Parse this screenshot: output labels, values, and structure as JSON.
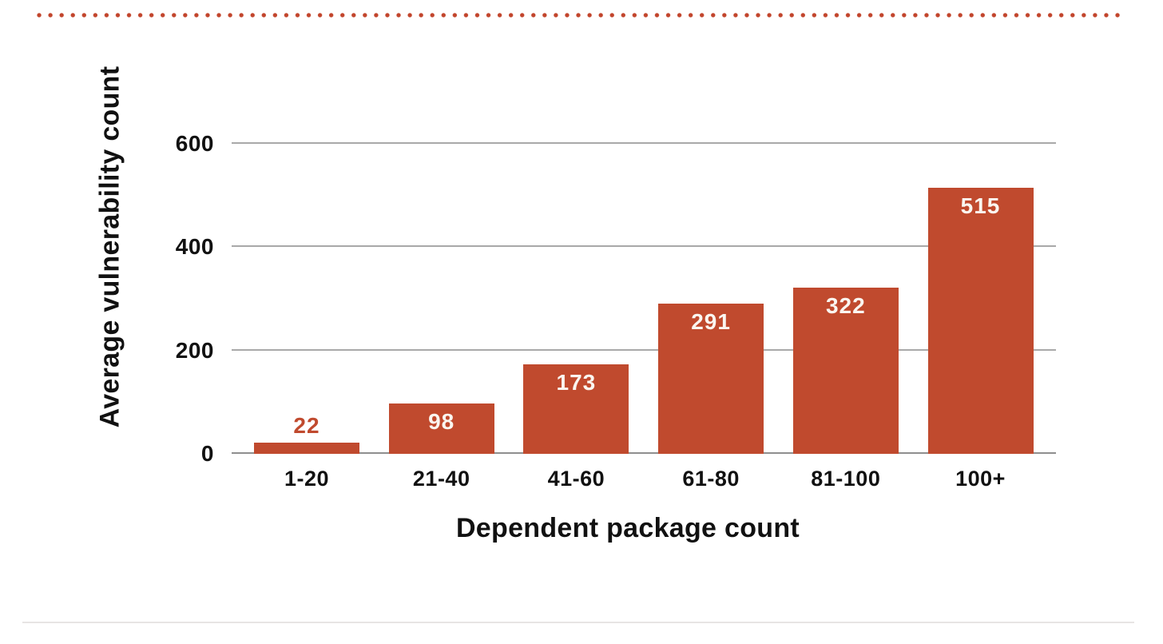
{
  "colors": {
    "background": "#ffffff",
    "bar": "#c04a2e",
    "dot": "#c2452c",
    "grid_line": "#a9a9a9",
    "axis_line": "#8f8f8f",
    "axis_text": "#111111",
    "value_label_inside": "#faf6f0",
    "bottom_divider": "#e7e5e4"
  },
  "chart_data": {
    "type": "bar",
    "xlabel": "Dependent package count",
    "ylabel": "Average vulnerability count",
    "categories": [
      "1-20",
      "21-40",
      "41-60",
      "61-80",
      "81-100",
      "100+"
    ],
    "values": [
      22,
      98,
      173,
      291,
      322,
      515
    ],
    "yticks": [
      0,
      200,
      400,
      600
    ],
    "ylim": [
      0,
      600
    ],
    "grid": true,
    "legend_position": "none",
    "bar_value_labels": [
      22,
      98,
      173,
      291,
      322,
      515
    ]
  }
}
